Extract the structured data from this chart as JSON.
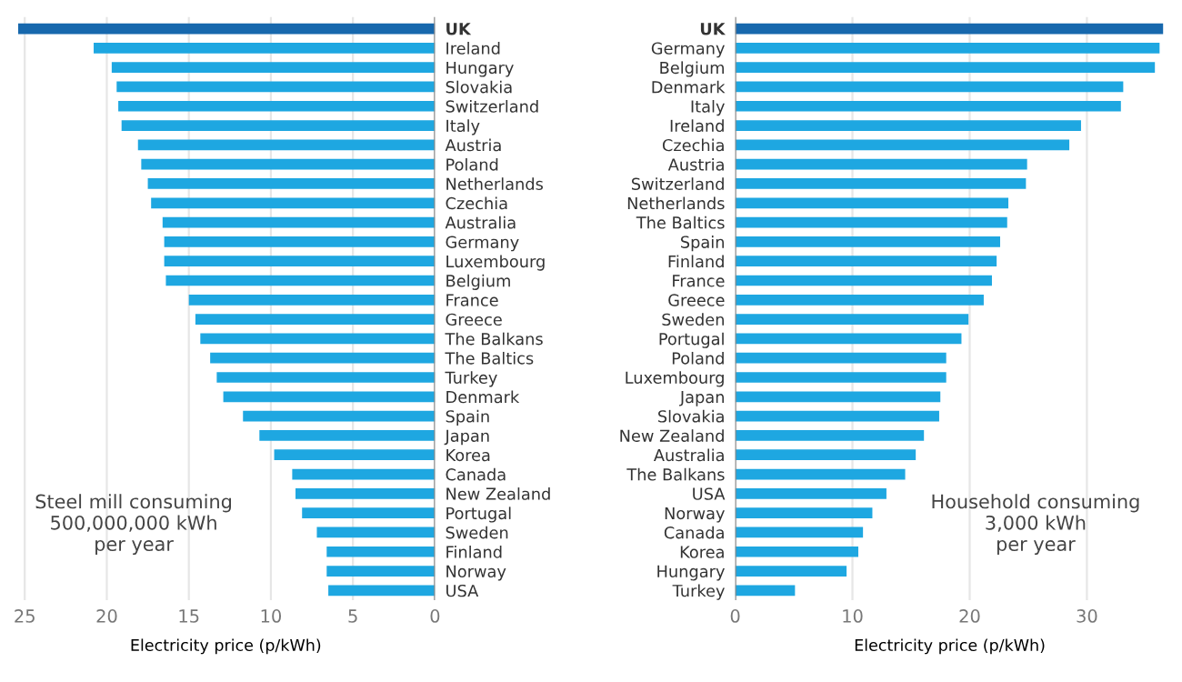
{
  "chart_data": [
    {
      "type": "bar",
      "orientation": "horizontal",
      "categories": [
        "UK",
        "Ireland",
        "Hungary",
        "Slovakia",
        "Switzerland",
        "Italy",
        "Austria",
        "Poland",
        "Netherlands",
        "Czechia",
        "Australia",
        "Germany",
        "Luxembourg",
        "Belgium",
        "France",
        "Greece",
        "The Balkans",
        "The Baltics",
        "Turkey",
        "Denmark",
        "Spain",
        "Japan",
        "Korea",
        "Canada",
        "New Zealand",
        "Portugal",
        "Sweden",
        "Finland",
        "Norway",
        "USA"
      ],
      "values": [
        25.4,
        20.8,
        19.7,
        19.4,
        19.3,
        19.1,
        18.1,
        17.9,
        17.5,
        17.3,
        16.6,
        16.5,
        16.5,
        16.4,
        15.0,
        14.6,
        14.3,
        13.7,
        13.3,
        12.9,
        11.7,
        10.7,
        9.8,
        8.7,
        8.5,
        8.1,
        7.2,
        6.6,
        6.6,
        6.5
      ],
      "colors": [
        "#1768ad",
        "#1ea7e1",
        "#1ea7e1",
        "#1ea7e1",
        "#1ea7e1",
        "#1ea7e1",
        "#1ea7e1",
        "#1ea7e1",
        "#1ea7e1",
        "#1ea7e1",
        "#1ea7e1",
        "#1ea7e1",
        "#1ea7e1",
        "#1ea7e1",
        "#1ea7e1",
        "#1ea7e1",
        "#1ea7e1",
        "#1ea7e1",
        "#1ea7e1",
        "#1ea7e1",
        "#1ea7e1",
        "#1ea7e1",
        "#1ea7e1",
        "#1ea7e1",
        "#1ea7e1",
        "#1ea7e1",
        "#1ea7e1",
        "#1ea7e1",
        "#1ea7e1",
        "#1ea7e1"
      ],
      "xlim": [
        25.5,
        0
      ],
      "xticks": [
        25,
        20,
        15,
        10,
        5,
        0
      ],
      "xlabel": "Electricity price (p/kWh)",
      "grid": "x",
      "annotations": [
        "Steel mill consuming\n500,000,000 kWh\nper year"
      ]
    },
    {
      "type": "bar",
      "orientation": "horizontal",
      "categories": [
        "UK",
        "Germany",
        "Belgium",
        "Denmark",
        "Italy",
        "Ireland",
        "Czechia",
        "Austria",
        "Switzerland",
        "Netherlands",
        "The Baltics",
        "Spain",
        "Finland",
        "France",
        "Greece",
        "Sweden",
        "Portugal",
        "Poland",
        "Luxembourg",
        "Japan",
        "Slovakia",
        "New Zealand",
        "Australia",
        "The Balkans",
        "USA",
        "Norway",
        "Canada",
        "Korea",
        "Hungary",
        "Turkey"
      ],
      "values": [
        36.5,
        36.2,
        35.8,
        33.1,
        32.9,
        29.5,
        28.5,
        24.9,
        24.8,
        23.3,
        23.2,
        22.6,
        22.3,
        21.9,
        21.2,
        19.9,
        19.3,
        18.0,
        18.0,
        17.5,
        17.4,
        16.1,
        15.4,
        14.5,
        12.9,
        11.7,
        10.9,
        10.5,
        9.5,
        5.1
      ],
      "colors": [
        "#1768ad",
        "#1ea7e1",
        "#1ea7e1",
        "#1ea7e1",
        "#1ea7e1",
        "#1ea7e1",
        "#1ea7e1",
        "#1ea7e1",
        "#1ea7e1",
        "#1ea7e1",
        "#1ea7e1",
        "#1ea7e1",
        "#1ea7e1",
        "#1ea7e1",
        "#1ea7e1",
        "#1ea7e1",
        "#1ea7e1",
        "#1ea7e1",
        "#1ea7e1",
        "#1ea7e1",
        "#1ea7e1",
        "#1ea7e1",
        "#1ea7e1",
        "#1ea7e1",
        "#1ea7e1",
        "#1ea7e1",
        "#1ea7e1",
        "#1ea7e1",
        "#1ea7e1",
        "#1ea7e1"
      ],
      "xlim": [
        0,
        36.6
      ],
      "xticks": [
        0,
        10,
        20,
        30
      ],
      "xlabel": "Electricity price (p/kWh)",
      "grid": "x",
      "annotations": [
        "Household consuming\n3,000 kWh\nper year"
      ]
    }
  ]
}
